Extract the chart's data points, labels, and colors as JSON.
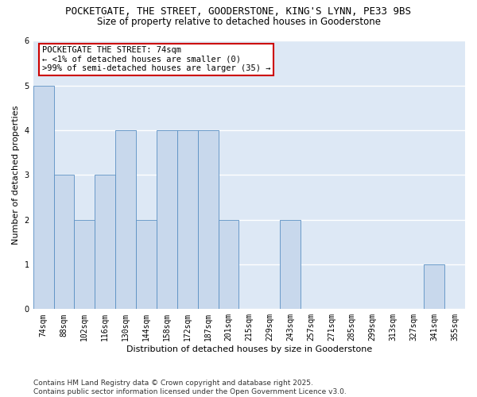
{
  "title1": "POCKETGATE, THE STREET, GOODERSTONE, KING'S LYNN, PE33 9BS",
  "title2": "Size of property relative to detached houses in Gooderstone",
  "xlabel": "Distribution of detached houses by size in Gooderstone",
  "ylabel": "Number of detached properties",
  "categories": [
    "74sqm",
    "88sqm",
    "102sqm",
    "116sqm",
    "130sqm",
    "144sqm",
    "158sqm",
    "172sqm",
    "187sqm",
    "201sqm",
    "215sqm",
    "229sqm",
    "243sqm",
    "257sqm",
    "271sqm",
    "285sqm",
    "299sqm",
    "313sqm",
    "327sqm",
    "341sqm",
    "355sqm"
  ],
  "values": [
    5,
    3,
    2,
    3,
    4,
    2,
    4,
    4,
    4,
    2,
    0,
    0,
    2,
    0,
    0,
    0,
    0,
    0,
    0,
    1,
    0
  ],
  "bar_color": "#c8d8ec",
  "bar_edge_color": "#5a8fc3",
  "annotation_box_text": "POCKETGATE THE STREET: 74sqm\n← <1% of detached houses are smaller (0)\n>99% of semi-detached houses are larger (35) →",
  "annotation_box_color": "#ffffff",
  "annotation_box_edge_color": "#cc0000",
  "ylim": [
    0,
    6
  ],
  "yticks": [
    0,
    1,
    2,
    3,
    4,
    5,
    6
  ],
  "background_color": "#dde8f5",
  "grid_color": "#ffffff",
  "footer": "Contains HM Land Registry data © Crown copyright and database right 2025.\nContains public sector information licensed under the Open Government Licence v3.0.",
  "title1_fontsize": 9,
  "title2_fontsize": 8.5,
  "axis_label_fontsize": 8,
  "tick_fontsize": 7,
  "annotation_fontsize": 7.5,
  "footer_fontsize": 6.5
}
